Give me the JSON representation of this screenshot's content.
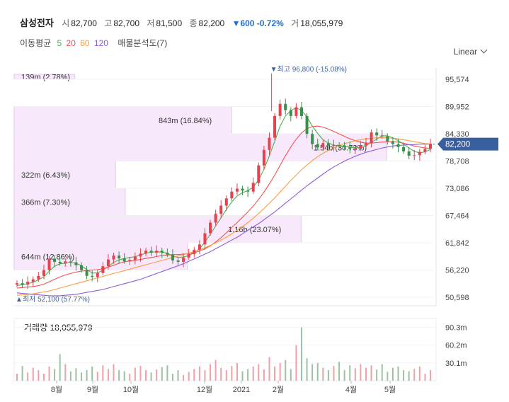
{
  "header": {
    "name": "삼성전자",
    "open_label": "시",
    "open": "82,700",
    "high_label": "고",
    "high": "82,700",
    "low_label": "저",
    "low": "81,500",
    "close_label": "종",
    "close": "82,200",
    "change": "▼600 -0.72%",
    "volume_label": "거",
    "volume": "18,055,979"
  },
  "ma_legend": {
    "label": "이동평균",
    "periods": [
      "5",
      "20",
      "60",
      "120"
    ],
    "colors": [
      "#4caf50",
      "#ef5350",
      "#ff9a3c",
      "#8e5bd6"
    ],
    "vp_label": "매물분석도(7)"
  },
  "scale_label": "Linear",
  "current_price_tag": "82,200",
  "colors": {
    "up": "#e8414e",
    "down": "#3a8f4a",
    "accent": "#3a5f9e",
    "vp_fill": "#f7e9fb",
    "vp_border": "#e5c6ef"
  },
  "chart_data": [
    {
      "type": "candlestick",
      "y_ticks": [
        "95,574",
        "89,952",
        "84,330",
        "78,708",
        "73,086",
        "67,464",
        "61,842",
        "56,220",
        "50,598"
      ],
      "x_ticks": [
        "8월",
        "9월",
        "10월",
        "12월",
        "2021",
        "2월",
        "4월",
        "5월"
      ],
      "ylim": [
        49000,
        98000
      ],
      "high_annotation": "▼최고 96,800 (-15.08%)",
      "low_annotation": "▲최저 52,100 (57.77%)",
      "close_series": [
        53500,
        53200,
        53800,
        54300,
        55000,
        56200,
        58500,
        57900,
        57600,
        58000,
        57800,
        57200,
        56200,
        55000,
        54800,
        55600,
        57000,
        58400,
        59200,
        58600,
        58000,
        58300,
        59000,
        59600,
        60200,
        59800,
        60200,
        59800,
        59400,
        58200,
        57900,
        58800,
        59500,
        60400,
        61500,
        63800,
        66000,
        67800,
        69500,
        71000,
        72400,
        73000,
        72600,
        72400,
        74200,
        77800,
        81000,
        83500,
        88000,
        90500,
        89200,
        88000,
        89800,
        88000,
        84300,
        82200,
        81500,
        82400,
        81800,
        82000,
        81800,
        81600,
        81200,
        81300,
        82000,
        82400,
        84600,
        84000,
        83800,
        82800,
        82200,
        81600,
        80700,
        79800,
        79900,
        80600,
        81200,
        82200
      ],
      "ma_series": [
        {
          "name": "5",
          "values": [
            53000,
            53200,
            53400,
            53700,
            54200,
            54800,
            56000,
            57000,
            57500,
            57600,
            57800,
            57600,
            57100,
            56300,
            55600,
            55600,
            56200,
            56900,
            57800,
            58300,
            58600,
            58800,
            59000,
            59300,
            59700,
            59900,
            60000,
            59900,
            59700,
            59100,
            58800,
            58900,
            59200,
            59800,
            60600,
            62000,
            63600,
            65300,
            67000,
            68700,
            70300,
            71500,
            72200,
            72600,
            73300,
            74800,
            77000,
            79800,
            82800,
            85900,
            88000,
            89100,
            89700,
            89100,
            87800,
            85900,
            84400,
            83100,
            82400,
            82000,
            81800,
            81800,
            81600,
            81400,
            81500,
            81800,
            82600,
            83200,
            83900,
            83900,
            83500,
            82900,
            82200,
            81400,
            80700,
            80400,
            80600,
            81100
          ]
        },
        {
          "name": "20",
          "values": [
            52500,
            52600,
            52700,
            52800,
            53000,
            53300,
            53800,
            54300,
            54800,
            55200,
            55500,
            55800,
            56000,
            56100,
            56200,
            56300,
            56500,
            56800,
            57200,
            57600,
            57900,
            58100,
            58200,
            58400,
            58600,
            58800,
            59000,
            59200,
            59300,
            59400,
            59400,
            59500,
            59600,
            59800,
            60100,
            60600,
            61200,
            62000,
            62900,
            63900,
            65000,
            66000,
            67100,
            68200,
            69400,
            70800,
            72300,
            74000,
            75800,
            77800,
            79800,
            81600,
            83200,
            84500,
            85400,
            85800,
            85900,
            85700,
            85300,
            84800,
            84300,
            83800,
            83300,
            82900,
            82600,
            82400,
            82400,
            82500,
            82600,
            82700,
            82700,
            82600,
            82400,
            82100,
            81800,
            81600,
            81400,
            81300
          ]
        },
        {
          "name": "60",
          "values": [
            51000,
            51100,
            51200,
            51300,
            51500,
            51700,
            51900,
            52200,
            52500,
            52800,
            53100,
            53400,
            53700,
            54000,
            54300,
            54600,
            54900,
            55200,
            55500,
            55800,
            56100,
            56400,
            56700,
            57000,
            57300,
            57600,
            57900,
            58200,
            58500,
            58800,
            59100,
            59400,
            59700,
            60000,
            60400,
            60800,
            61300,
            61800,
            62400,
            63000,
            63700,
            64400,
            65200,
            66000,
            66900,
            67900,
            68900,
            70000,
            71100,
            72300,
            73500,
            74700,
            75800,
            76900,
            77900,
            78800,
            79600,
            80300,
            80900,
            81400,
            81900,
            82300,
            82600,
            82900,
            83100,
            83300,
            83400,
            83500,
            83500,
            83500,
            83400,
            83300,
            83100,
            82900,
            82700,
            82500,
            82300,
            82200
          ]
        },
        {
          "name": "120",
          "values": [
            51500,
            51400,
            51300,
            51200,
            51100,
            51000,
            50900,
            50900,
            50900,
            51000,
            51100,
            51200,
            51400,
            51600,
            51800,
            52000,
            52200,
            52500,
            52800,
            53100,
            53400,
            53700,
            54000,
            54300,
            54700,
            55100,
            55500,
            55900,
            56300,
            56700,
            57100,
            57500,
            58000,
            58500,
            59000,
            59500,
            60000,
            60600,
            61200,
            61800,
            62400,
            63000,
            63700,
            64400,
            65100,
            65800,
            66600,
            67400,
            68200,
            69100,
            70000,
            70900,
            71800,
            72700,
            73600,
            74400,
            75200,
            76000,
            76800,
            77500,
            78100,
            78700,
            79200,
            79700,
            80100,
            80500,
            80800,
            81100,
            81400,
            81600,
            81800,
            81900,
            82000,
            82100,
            82100,
            82200,
            82200,
            82200
          ]
        }
      ],
      "volume_profile": [
        {
          "label": "139m (2.78%)",
          "from": 95600,
          "to": 98500,
          "share": 2.78
        },
        {
          "label": "843m (16.84%)",
          "from": 89952,
          "to": 84330,
          "share": 16.84
        },
        {
          "label": "1.54b (30.73%)",
          "from": 84330,
          "to": 78708,
          "share": 30.73
        },
        {
          "label": "322m (6.43%)",
          "from": 78708,
          "to": 73086,
          "share": 6.43
        },
        {
          "label": "366m (7.30%)",
          "from": 73086,
          "to": 67464,
          "share": 7.3
        },
        {
          "label": "1.16b (23.07%)",
          "from": 67464,
          "to": 61842,
          "share": 23.07
        },
        {
          "label": "644m (12.86%)",
          "from": 61842,
          "to": 56220,
          "share": 12.86
        }
      ]
    },
    {
      "type": "bar",
      "title": "거래량 18,055,979",
      "y_ticks": [
        "90.3m",
        "60.2m",
        "30.1m"
      ],
      "ylim": [
        0,
        105
      ],
      "unit": "m",
      "values": [
        12,
        25,
        14,
        22,
        18,
        12,
        24,
        20,
        45,
        28,
        16,
        21,
        14,
        18,
        24,
        15,
        26,
        20,
        28,
        18,
        16,
        12,
        22,
        25,
        18,
        14,
        19,
        23,
        26,
        12,
        18,
        10,
        15,
        20,
        24,
        18,
        28,
        35,
        22,
        18,
        25,
        30,
        16,
        20,
        24,
        28,
        19,
        40,
        24,
        30,
        35,
        20,
        60,
        90,
        38,
        28,
        30,
        22,
        18,
        25,
        32,
        18,
        26,
        21,
        28,
        22,
        26,
        19,
        28,
        15,
        22,
        24,
        18,
        16,
        20,
        24,
        12,
        18
      ]
    }
  ]
}
